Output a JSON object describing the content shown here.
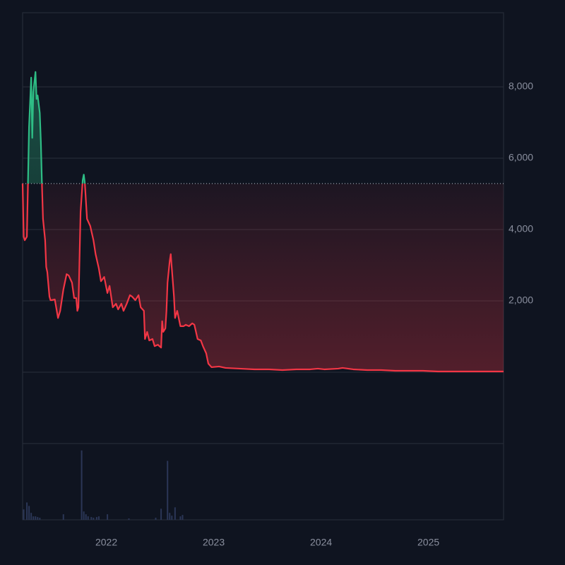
{
  "chart_data": {
    "type": "baseline",
    "baseline": 5290,
    "xlim": [
      2021.22,
      2025.7
    ],
    "xticks": [
      2022,
      2023,
      2024,
      2025
    ],
    "ylim": [
      -2000,
      10080
    ],
    "yticks": [
      {
        "value": 0,
        "label": null
      },
      {
        "value": 2000,
        "label": "2,000"
      },
      {
        "value": 4000,
        "label": "4,000"
      },
      {
        "value": 6000,
        "label": "6,000"
      },
      {
        "value": 8000,
        "label": "8,000"
      }
    ],
    "grid": true,
    "colors": {
      "above": "#2ebd85",
      "below": "#f23645",
      "volume": "#2b3656"
    },
    "x": [
      2021.22,
      2021.23,
      2021.24,
      2021.26,
      2021.27,
      2021.28,
      2021.3,
      2021.31,
      2021.32,
      2021.34,
      2021.35,
      2021.36,
      2021.38,
      2021.39,
      2021.4,
      2021.41,
      2021.43,
      2021.44,
      2021.45,
      2021.47,
      2021.48,
      2021.49,
      2021.52,
      2021.55,
      2021.57,
      2021.6,
      2021.63,
      2021.65,
      2021.68,
      2021.7,
      2021.72,
      2021.73,
      2021.74,
      2021.76,
      2021.78,
      2021.79,
      2021.8,
      2021.82,
      2021.85,
      2021.88,
      2021.9,
      2021.93,
      2021.95,
      2021.98,
      2022.01,
      2022.03,
      2022.06,
      2022.09,
      2022.11,
      2022.14,
      2022.16,
      2022.19,
      2022.22,
      2022.24,
      2022.27,
      2022.3,
      2022.32,
      2022.35,
      2022.36,
      2022.38,
      2022.4,
      2022.43,
      2022.45,
      2022.48,
      2022.51,
      2022.52,
      2022.53,
      2022.55,
      2022.56,
      2022.57,
      2022.59,
      2022.6,
      2022.61,
      2022.63,
      2022.64,
      2022.65,
      2022.66,
      2022.69,
      2022.72,
      2022.74,
      2022.77,
      2022.8,
      2022.82,
      2022.85,
      2022.88,
      2022.9,
      2022.93,
      2022.95,
      2022.98,
      2023.05,
      2023.11,
      2023.24,
      2023.38,
      2023.51,
      2023.64,
      2023.77,
      2023.9,
      2023.97,
      2024.03,
      2024.16,
      2024.2,
      2024.3,
      2024.43,
      2024.56,
      2024.69,
      2024.82,
      2024.95,
      2025.09,
      2025.35,
      2025.7
    ],
    "values": [
      5290,
      3800,
      3700,
      3800,
      5290,
      6870,
      8260,
      6570,
      7860,
      8420,
      7660,
      7760,
      7270,
      6470,
      5290,
      4300,
      3700,
      2950,
      2810,
      2120,
      2020,
      2020,
      2040,
      1520,
      1720,
      2320,
      2750,
      2710,
      2510,
      2080,
      2080,
      1720,
      1820,
      4490,
      5390,
      5540,
      5290,
      4300,
      4100,
      3700,
      3310,
      2910,
      2550,
      2670,
      2220,
      2420,
      1820,
      1920,
      1760,
      1920,
      1720,
      1920,
      2160,
      2120,
      2020,
      2160,
      1820,
      1720,
      930,
      1130,
      890,
      930,
      730,
      770,
      690,
      1430,
      1130,
      1230,
      1720,
      2510,
      3110,
      3310,
      2910,
      2120,
      1520,
      1620,
      1720,
      1290,
      1290,
      1330,
      1290,
      1370,
      1330,
      930,
      890,
      730,
      530,
      240,
      140,
      160,
      120,
      100,
      80,
      80,
      60,
      80,
      80,
      100,
      80,
      100,
      120,
      80,
      60,
      60,
      40,
      40,
      40,
      20,
      20,
      20
    ],
    "volume": {
      "ylim": [
        0,
        110
      ],
      "x": [
        2021.23,
        2021.26,
        2021.28,
        2021.3,
        2021.32,
        2021.34,
        2021.36,
        2021.38,
        2021.6,
        2021.77,
        2021.79,
        2021.81,
        2021.83,
        2021.86,
        2021.88,
        2021.91,
        2021.93,
        2022.01,
        2022.21,
        2022.46,
        2022.51,
        2022.57,
        2022.59,
        2022.61,
        2022.64,
        2022.69,
        2022.71
      ],
      "values": [
        15,
        25,
        20,
        10,
        5,
        5,
        4,
        3,
        8,
        100,
        12,
        8,
        5,
        4,
        3,
        4,
        5,
        8,
        2,
        3,
        16,
        85,
        10,
        6,
        18,
        5,
        7
      ]
    }
  }
}
